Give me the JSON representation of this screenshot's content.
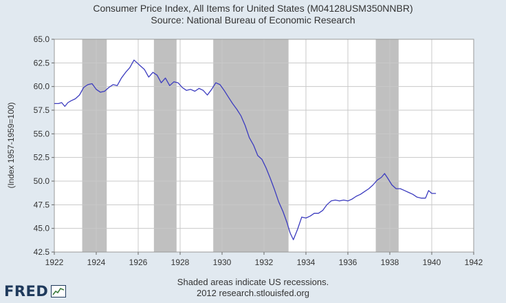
{
  "header": {
    "title_line1": "Consumer Price Index, All Items for United States (M04128USM350NNBR)",
    "title_line2": "Source: National Bureau of Economic Research"
  },
  "footer": {
    "line1": "Shaded areas indicate US recessions.",
    "line2": "2012 research.stlouisfed.org"
  },
  "logo": {
    "text": "FRED"
  },
  "colors": {
    "background": "#e1e9f0",
    "plot_bg": "#ffffff",
    "line": "#3b3bbf",
    "recession": "#c0c0c0",
    "grid": "#c8c8c8"
  },
  "chart_data": {
    "type": "line",
    "title": "Consumer Price Index, All Items for United States (M04128USM350NNBR)",
    "subtitle": "Source: National Bureau of Economic Research",
    "xlabel": "",
    "ylabel": "(Index 1957-1959=100)",
    "xlim": [
      1922,
      1942
    ],
    "ylim": [
      42.5,
      65.0
    ],
    "x_ticks": [
      1922,
      1924,
      1926,
      1928,
      1930,
      1932,
      1934,
      1936,
      1938,
      1940,
      1942
    ],
    "x_tick_labels": [
      "1922",
      "1924",
      "1926",
      "1928",
      "1930",
      "1932",
      "1934",
      "1936",
      "1938",
      "1940",
      "1942"
    ],
    "y_ticks": [
      42.5,
      45.0,
      47.5,
      50.0,
      52.5,
      55.0,
      57.5,
      60.0,
      62.5,
      65.0
    ],
    "y_tick_labels": [
      "42.5",
      "45.0",
      "47.5",
      "50.0",
      "52.5",
      "55.0",
      "57.5",
      "60.0",
      "62.5",
      "65.0"
    ],
    "grid": true,
    "recessions": [
      [
        1923.33,
        1924.5
      ],
      [
        1926.75,
        1927.83
      ],
      [
        1929.58,
        1933.17
      ],
      [
        1937.33,
        1938.42
      ]
    ],
    "series": [
      {
        "name": "CPI",
        "x": [
          1922.0,
          1922.2,
          1922.35,
          1922.5,
          1922.65,
          1922.8,
          1923.0,
          1923.2,
          1923.4,
          1923.6,
          1923.8,
          1924.0,
          1924.2,
          1924.4,
          1924.6,
          1924.8,
          1925.0,
          1925.2,
          1925.4,
          1925.6,
          1925.8,
          1925.95,
          1926.1,
          1926.3,
          1926.5,
          1926.7,
          1926.9,
          1927.1,
          1927.3,
          1927.5,
          1927.7,
          1927.9,
          1928.1,
          1928.3,
          1928.5,
          1928.7,
          1928.9,
          1929.1,
          1929.3,
          1929.5,
          1929.7,
          1929.9,
          1930.1,
          1930.3,
          1930.5,
          1930.7,
          1930.9,
          1931.1,
          1931.3,
          1931.5,
          1931.7,
          1931.9,
          1932.1,
          1932.3,
          1932.5,
          1932.7,
          1932.9,
          1933.1,
          1933.25,
          1933.4,
          1933.6,
          1933.8,
          1934.0,
          1934.2,
          1934.4,
          1934.6,
          1934.8,
          1935.0,
          1935.2,
          1935.4,
          1935.6,
          1935.8,
          1936.0,
          1936.2,
          1936.4,
          1936.6,
          1936.8,
          1937.0,
          1937.2,
          1937.4,
          1937.6,
          1937.75,
          1937.9,
          1938.1,
          1938.3,
          1938.5,
          1938.7,
          1938.9,
          1939.1,
          1939.3,
          1939.5,
          1939.7,
          1939.85,
          1940.0,
          1940.2
        ],
        "values": [
          58.2,
          58.2,
          58.3,
          57.9,
          58.3,
          58.5,
          58.7,
          59.1,
          59.9,
          60.2,
          60.3,
          59.7,
          59.4,
          59.5,
          59.9,
          60.2,
          60.1,
          60.9,
          61.5,
          62.0,
          62.8,
          62.5,
          62.2,
          61.8,
          61.0,
          61.5,
          61.2,
          60.4,
          60.9,
          60.1,
          60.5,
          60.4,
          59.9,
          59.6,
          59.7,
          59.5,
          59.8,
          59.6,
          59.1,
          59.7,
          60.4,
          60.2,
          59.6,
          58.9,
          58.2,
          57.6,
          56.9,
          55.9,
          54.6,
          53.8,
          52.7,
          52.3,
          51.4,
          50.3,
          49.1,
          47.8,
          46.8,
          45.6,
          44.5,
          43.8,
          44.9,
          46.2,
          46.1,
          46.3,
          46.6,
          46.6,
          46.9,
          47.5,
          47.9,
          48.0,
          47.9,
          48.0,
          47.9,
          48.1,
          48.4,
          48.6,
          48.9,
          49.2,
          49.6,
          50.1,
          50.4,
          50.8,
          50.3,
          49.6,
          49.2,
          49.2,
          49.0,
          48.8,
          48.6,
          48.3,
          48.2,
          48.2,
          49.0,
          48.7,
          48.7
        ]
      }
    ]
  }
}
